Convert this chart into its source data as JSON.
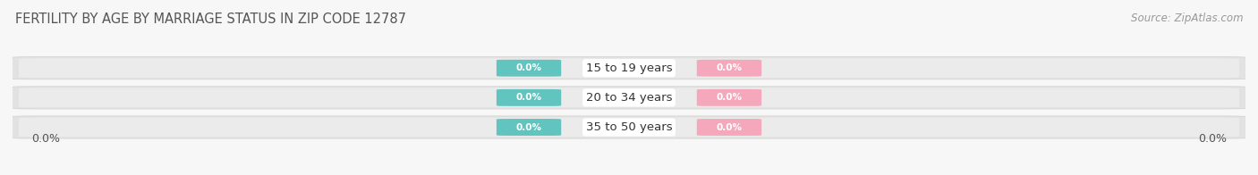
{
  "title": "FERTILITY BY AGE BY MARRIAGE STATUS IN ZIP CODE 12787",
  "source": "Source: ZipAtlas.com",
  "categories": [
    "15 to 19 years",
    "20 to 34 years",
    "35 to 50 years"
  ],
  "married_values": [
    0.0,
    0.0,
    0.0
  ],
  "unmarried_values": [
    0.0,
    0.0,
    0.0
  ],
  "married_color": "#62c4bf",
  "unmarried_color": "#f5a8bc",
  "bar_bg_color": "#e2e2e2",
  "bar_bg_color_inner": "#ebebeb",
  "background_color": "#f7f7f7",
  "left_axis_label": "0.0%",
  "right_axis_label": "0.0%",
  "title_fontsize": 10.5,
  "source_fontsize": 8.5,
  "label_fontsize": 7.5,
  "category_fontsize": 9.5,
  "axis_label_fontsize": 9
}
